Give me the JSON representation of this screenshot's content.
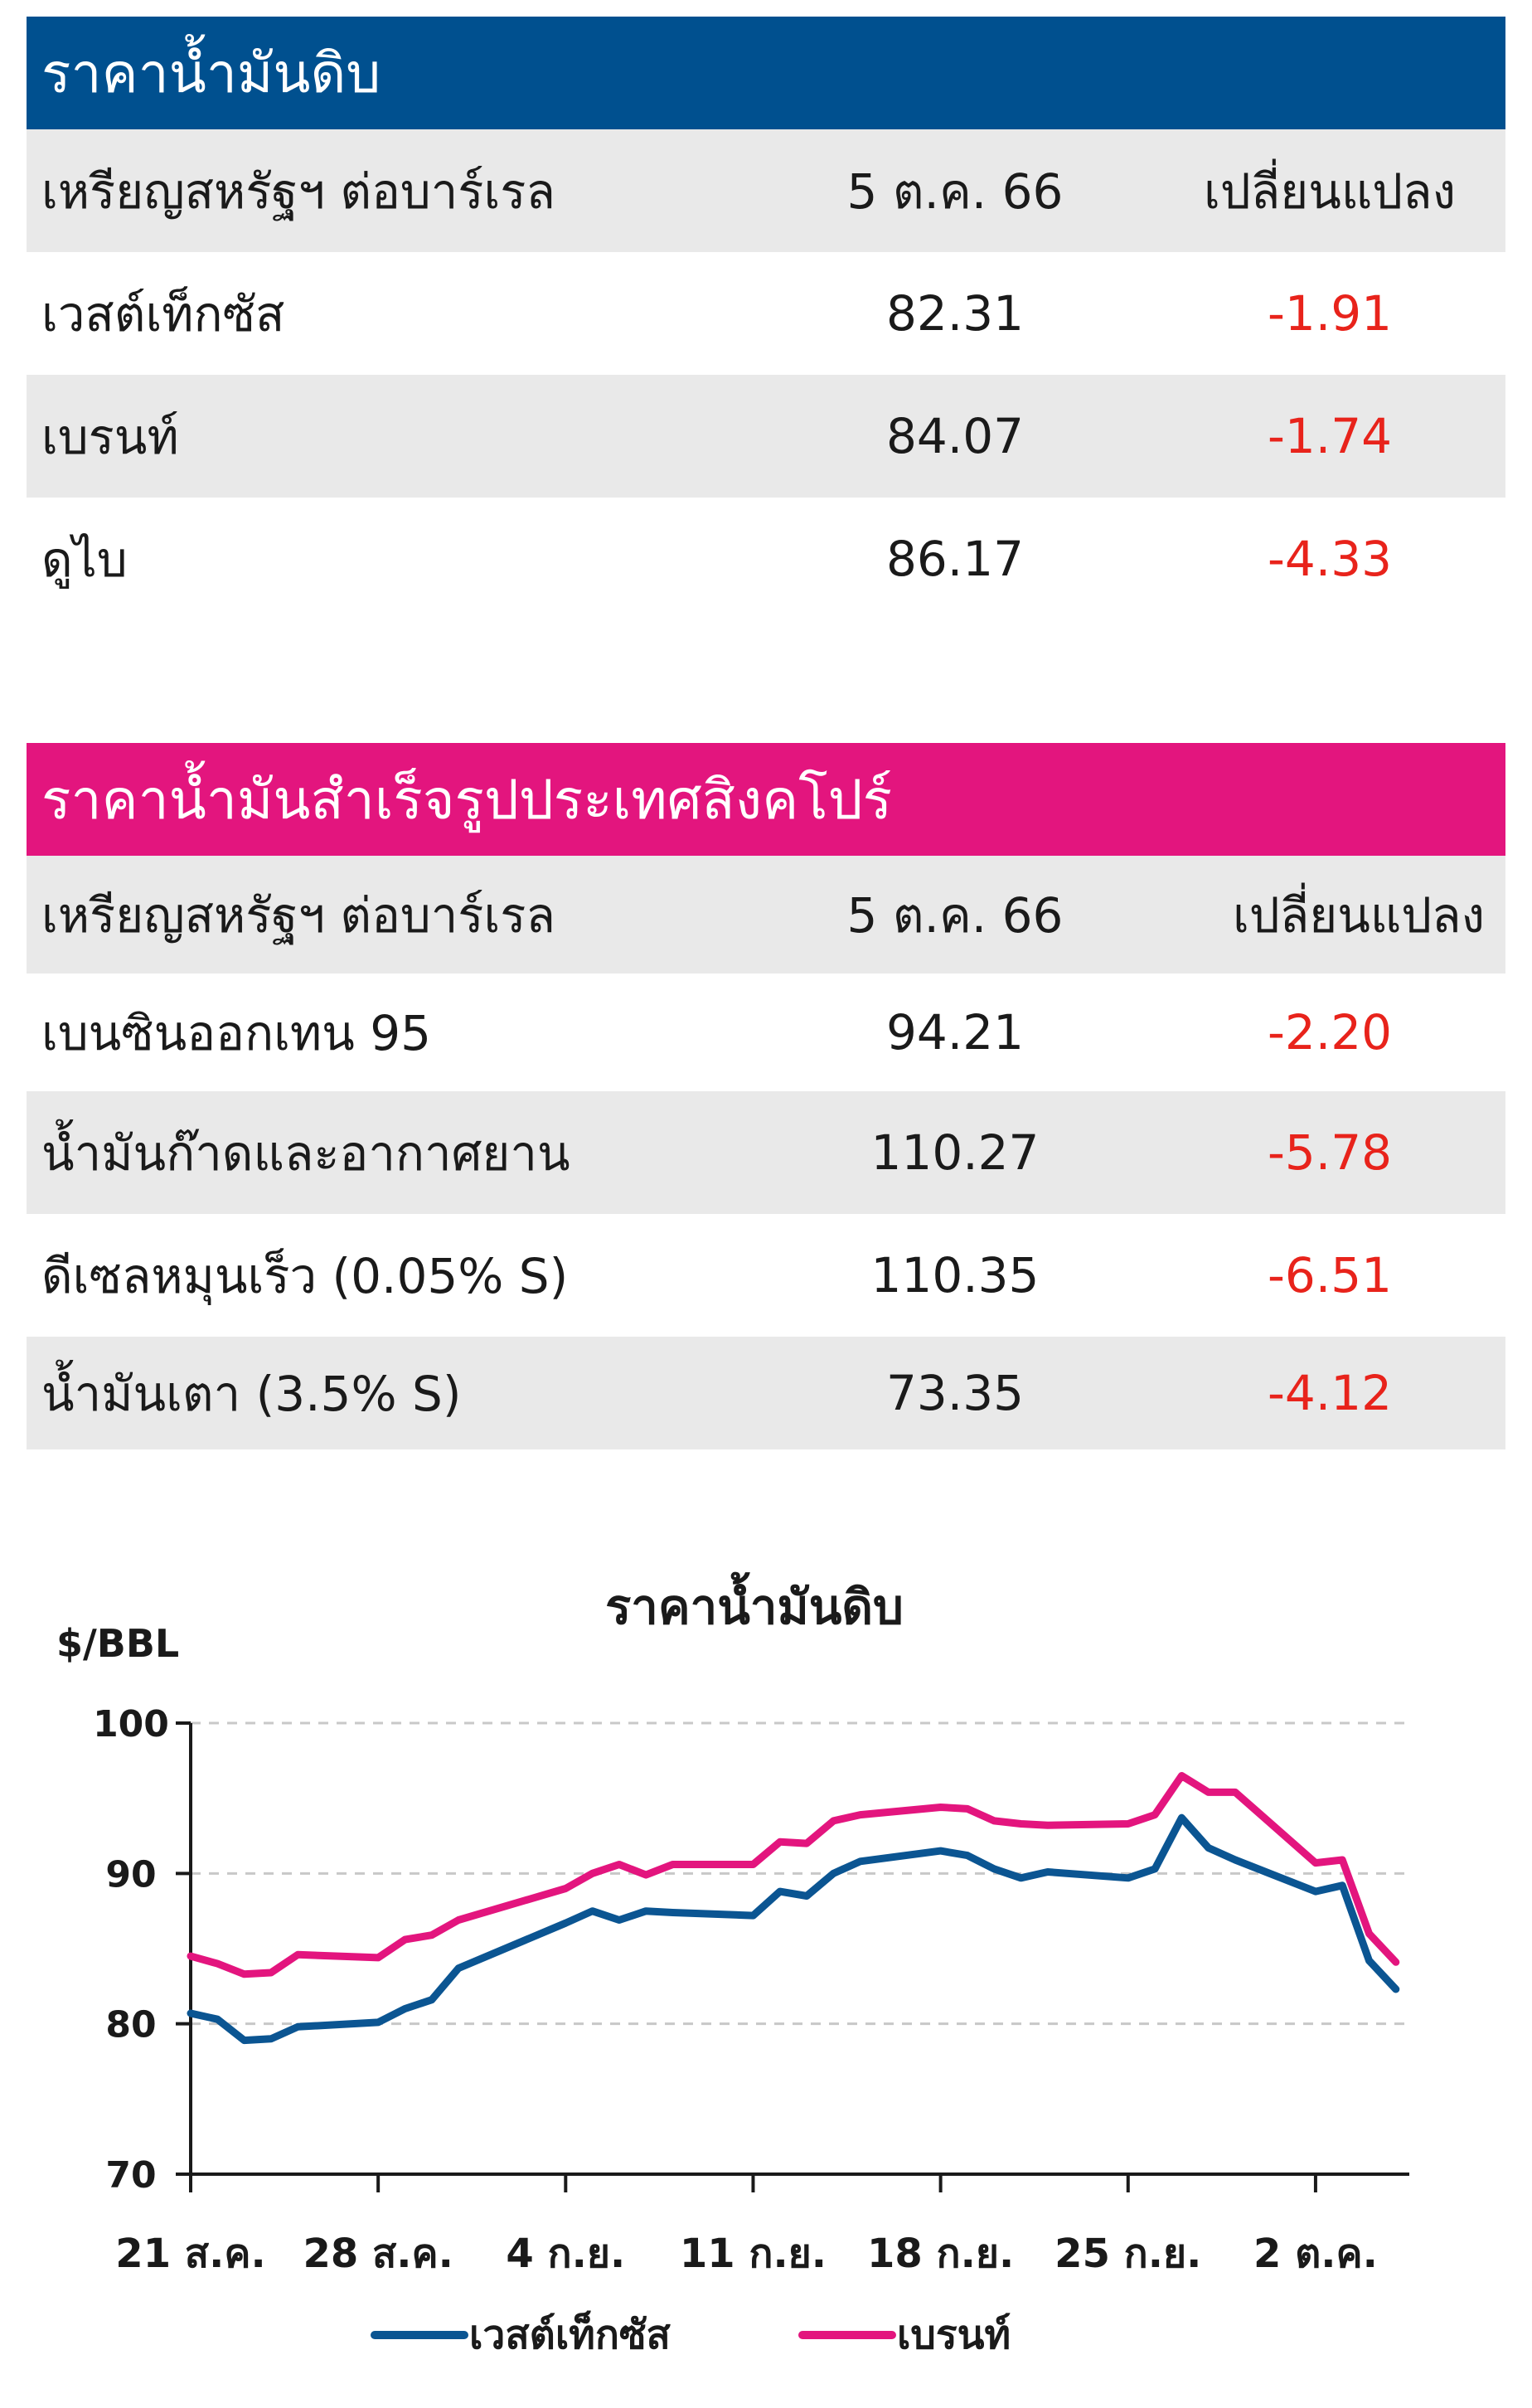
{
  "crude_table": {
    "title": "ราคาน้ำมันดิบ",
    "header": {
      "label": "เหรียญสหรัฐฯ ต่อบาร์เรล",
      "date": "5 ต.ค. 66",
      "change": "เปลี่ยนแปลง"
    },
    "rows": [
      {
        "name": "เวสต์เท็กซัส",
        "price": "82.31",
        "change": "-1.91"
      },
      {
        "name": "เบรนท์",
        "price": "84.07",
        "change": "-1.74"
      },
      {
        "name": "ดูไบ",
        "price": "86.17",
        "change": "-4.33"
      }
    ]
  },
  "product_table": {
    "title": "ราคาน้ำมันสำเร็จรูปประเทศสิงคโปร์",
    "header": {
      "label": "เหรียญสหรัฐฯ ต่อบาร์เรล",
      "date": "5 ต.ค. 66",
      "change": "เปลี่ยนแปลง"
    },
    "rows": [
      {
        "name": "เบนซินออกเทน 95",
        "price": "94.21",
        "change": "-2.20"
      },
      {
        "name": "น้ำมันก๊าดและอากาศยาน",
        "price": "110.27",
        "change": "-5.78"
      },
      {
        "name": "ดีเซลหมุนเร็ว (0.05% S)",
        "price": "110.35",
        "change": "-6.51"
      },
      {
        "name": "น้ำมันเตา (3.5% S)",
        "price": "73.35",
        "change": "-4.12"
      }
    ]
  },
  "colors": {
    "crude_header": "#00508f",
    "product_header": "#e3157e",
    "negative": "#e8231b",
    "wti": "#0b5592",
    "brent": "#e3157e"
  },
  "chart_data": {
    "type": "line",
    "title": "ราคาน้ำมันดิบ",
    "ylabel": "$/BBL",
    "ylim": [
      70,
      100
    ],
    "yticks": [
      70,
      80,
      90,
      100
    ],
    "grid": "horizontal dashed",
    "legend_position": "bottom",
    "x_tick_labels": [
      "21 ส.ค.",
      "28 ส.ค.",
      "4 ก.ย.",
      "11 ก.ย.",
      "18 ก.ย.",
      "25 ก.ย.",
      "2 ต.ค."
    ],
    "x_tick_days": [
      0,
      7,
      14,
      21,
      28,
      35,
      42
    ],
    "series": [
      {
        "name": "เวสต์เท็กซัส",
        "color": "#0b5592",
        "x": [
          0,
          1,
          2,
          3,
          4,
          7,
          8,
          9,
          10,
          14,
          15,
          16,
          17,
          18,
          21,
          22,
          23,
          24,
          25,
          28,
          29,
          30,
          31,
          32,
          35,
          36,
          37,
          38,
          39,
          42,
          43,
          44,
          45
        ],
        "values": [
          80.7,
          80.3,
          78.9,
          79.0,
          79.8,
          80.1,
          81.0,
          81.6,
          83.7,
          86.7,
          87.5,
          86.9,
          87.5,
          87.4,
          87.2,
          88.8,
          88.5,
          90.0,
          90.8,
          91.5,
          91.2,
          90.3,
          89.7,
          90.1,
          89.7,
          90.3,
          93.7,
          91.7,
          90.9,
          88.8,
          89.2,
          84.2,
          82.3
        ]
      },
      {
        "name": "เบรนท์",
        "color": "#e3157e",
        "x": [
          0,
          1,
          2,
          3,
          4,
          7,
          8,
          9,
          10,
          14,
          15,
          16,
          17,
          18,
          21,
          22,
          23,
          24,
          25,
          28,
          29,
          30,
          31,
          32,
          35,
          36,
          37,
          38,
          39,
          42,
          43,
          44,
          45
        ],
        "values": [
          84.5,
          84.0,
          83.3,
          83.4,
          84.6,
          84.4,
          85.6,
          85.9,
          86.9,
          89.0,
          90.0,
          90.6,
          89.9,
          90.6,
          90.6,
          92.1,
          92.0,
          93.5,
          93.9,
          94.4,
          94.3,
          93.5,
          93.3,
          93.2,
          93.3,
          93.9,
          96.5,
          95.4,
          95.4,
          90.7,
          90.9,
          86.0,
          84.1
        ]
      }
    ]
  }
}
